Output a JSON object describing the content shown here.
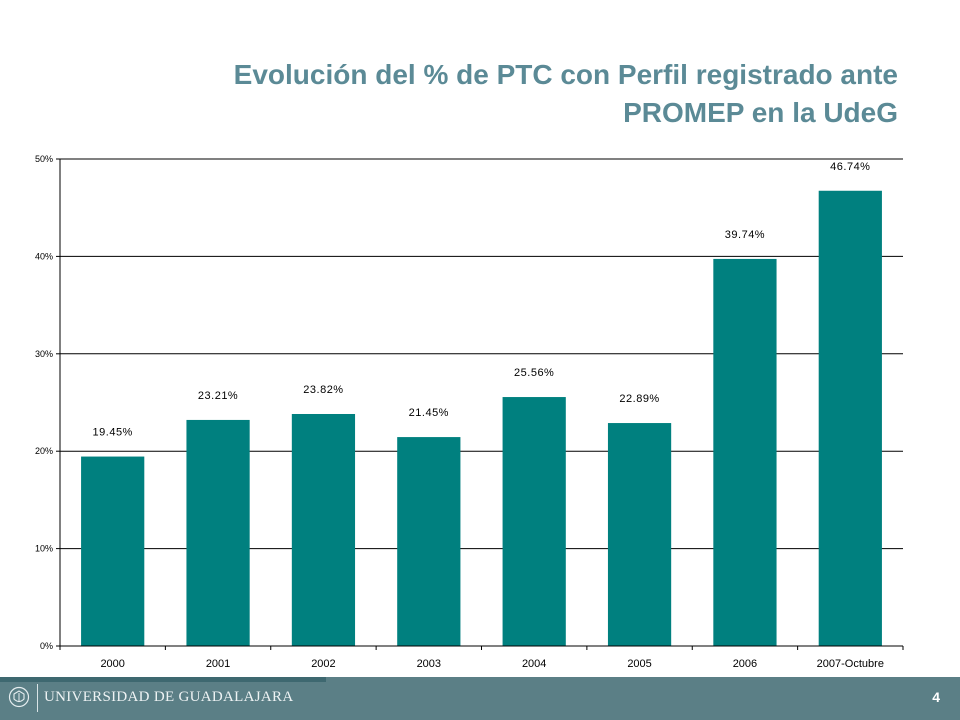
{
  "slide": {
    "title_line1": "Evolución del % de PTC con Perfil registrado ante",
    "title_line2": "PROMEP en la UdeG",
    "page_number": "4",
    "organization": "UNIVERSIDAD DE GUADALAJARA",
    "logo_icon": "university-seal-icon"
  },
  "colors": {
    "title": "#5b8a96",
    "bar": "#00807f",
    "footer": "#5b7f86",
    "axis": "#000000"
  },
  "chart_data": {
    "type": "bar",
    "title": "",
    "xlabel": "",
    "ylabel": "",
    "categories": [
      "2000",
      "2001",
      "2002",
      "2003",
      "2004",
      "2005",
      "2006",
      "2007-Octubre"
    ],
    "values": [
      19.45,
      23.21,
      23.82,
      21.45,
      25.56,
      22.89,
      39.74,
      46.74
    ],
    "value_labels": [
      "19.45%",
      "23.21%",
      "23.82%",
      "21.45%",
      "25.56%",
      "22.89%",
      "39.74%",
      "46.74%"
    ],
    "ylim": [
      0,
      50
    ],
    "yticks": [
      0,
      10,
      20,
      30,
      40,
      50
    ],
    "ytick_labels": [
      "0%",
      "10%",
      "20%",
      "30%",
      "40%",
      "50%"
    ],
    "grid": true,
    "legend": "none"
  }
}
